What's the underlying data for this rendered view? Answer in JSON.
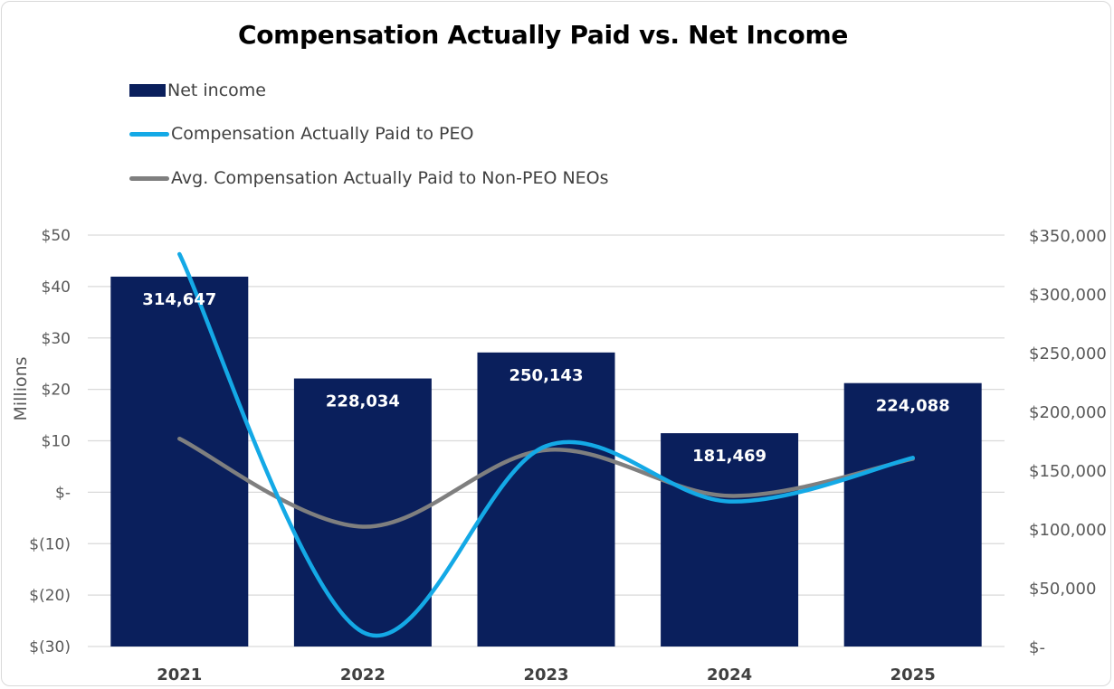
{
  "chart_data": {
    "type": "bar",
    "title": "Compensation Actually Paid vs. Net Income",
    "categories": [
      "2021",
      "2022",
      "2023",
      "2024",
      "2025"
    ],
    "left_axis": {
      "label": "Millions",
      "range": [
        -30,
        50
      ],
      "ticks": [
        {
          "value": 50,
          "label": "$50"
        },
        {
          "value": 40,
          "label": "$40"
        },
        {
          "value": 30,
          "label": "$30"
        },
        {
          "value": 20,
          "label": "$20"
        },
        {
          "value": 10,
          "label": "$10"
        },
        {
          "value": 0,
          "label": "$-"
        },
        {
          "value": -10,
          "label": "$(10)"
        },
        {
          "value": -20,
          "label": "$(20)"
        },
        {
          "value": -30,
          "label": "$(30)"
        }
      ]
    },
    "right_axis": {
      "range": [
        0,
        350000
      ],
      "ticks": [
        {
          "value": 350000,
          "label": "$350,000"
        },
        {
          "value": 300000,
          "label": "$300,000"
        },
        {
          "value": 250000,
          "label": "$250,000"
        },
        {
          "value": 200000,
          "label": "$200,000"
        },
        {
          "value": 150000,
          "label": "$150,000"
        },
        {
          "value": 100000,
          "label": "$100,000"
        },
        {
          "value": 50000,
          "label": "$50,000"
        },
        {
          "value": 0,
          "label": "$-"
        }
      ]
    },
    "grid": true,
    "legend_position": "top-left",
    "series": [
      {
        "name": "Net income",
        "kind": "bar",
        "axis": "right",
        "color": "#0a1f5c",
        "values": [
          314647,
          228034,
          250143,
          181469,
          224088
        ],
        "labels": [
          "314,647",
          "228,034",
          "250,143",
          "181,469",
          "224,088"
        ]
      },
      {
        "name": "Compensation Actually Paid to PEO",
        "kind": "line",
        "axis": "left",
        "color": "#14a9e6",
        "values": [
          46.3,
          -27.2,
          9.0,
          -1.8,
          6.7
        ]
      },
      {
        "name": "Avg. Compensation Actually Paid to Non-PEO NEOs",
        "kind": "line",
        "axis": "left",
        "color": "#7f7f7f",
        "values": [
          10.4,
          -6.7,
          8.2,
          -0.7,
          6.5
        ]
      }
    ]
  }
}
